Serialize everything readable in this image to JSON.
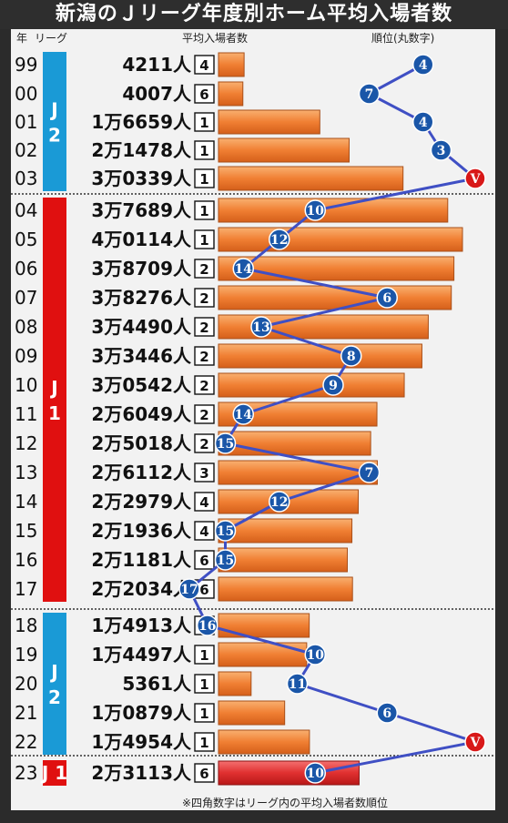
{
  "title": "新潟のＪリーグ年度別ホーム平均入場者数",
  "headers": {
    "year": "年",
    "league": "リーグ",
    "attendance": "平均入場者数",
    "rank": "順位(丸数字)"
  },
  "footnote": "※四角数字はリーグ内の平均入場者数順位",
  "league_labels": [
    {
      "label": "J 2",
      "color": "#1a9ad6"
    },
    {
      "label": "J 1",
      "color": "#e01010"
    },
    {
      "label": "J 2",
      "color": "#1a9ad6"
    },
    {
      "label": "J 1",
      "color": "#e01010"
    }
  ],
  "colors": {
    "bar": "#f07f33",
    "bar_latest": "#e03030",
    "rank_marker": "#1a56a8",
    "champion_marker": "#d81818",
    "line": "#3f4fc4"
  },
  "chart_data": {
    "type": "bar",
    "title": "新潟のＪリーグ年度別ホーム平均入場者数",
    "xlabel": "年",
    "ylabel": "平均入場者数",
    "categories": [
      "99",
      "00",
      "01",
      "02",
      "03",
      "04",
      "05",
      "06",
      "07",
      "08",
      "09",
      "10",
      "11",
      "12",
      "13",
      "14",
      "15",
      "16",
      "17",
      "18",
      "19",
      "20",
      "21",
      "22",
      "23"
    ],
    "leagues": [
      "J2",
      "J2",
      "J2",
      "J2",
      "J2",
      "J1",
      "J1",
      "J1",
      "J1",
      "J1",
      "J1",
      "J1",
      "J1",
      "J1",
      "J1",
      "J1",
      "J1",
      "J1",
      "J1",
      "J2",
      "J2",
      "J2",
      "J2",
      "J2",
      "J1"
    ],
    "attendance_labels": [
      "4211人",
      "4007人",
      "1万6659人",
      "2万1478人",
      "3万0339人",
      "3万7689人",
      "4万0114人",
      "3万8709人",
      "3万8276人",
      "3万4490人",
      "3万3446人",
      "3万0542人",
      "2万6049人",
      "2万5018人",
      "2万6112人",
      "2万2979人",
      "2万1936人",
      "2万1181人",
      "2万2034人",
      "1万4913人",
      "1万4497人",
      "5361人",
      "1万0879人",
      "1万4954人",
      "2万3113人"
    ],
    "values": [
      4211,
      4007,
      16659,
      21478,
      30339,
      37689,
      40114,
      38709,
      38276,
      34490,
      33446,
      30542,
      26049,
      25018,
      26112,
      22979,
      21936,
      21181,
      22034,
      14913,
      14497,
      5361,
      10879,
      14954,
      23113
    ],
    "attendance_rank_in_league": [
      4,
      6,
      1,
      1,
      1,
      1,
      1,
      2,
      2,
      2,
      2,
      2,
      2,
      2,
      3,
      4,
      4,
      6,
      6,
      1,
      1,
      1,
      1,
      1,
      6
    ],
    "series": [
      {
        "name": "順位",
        "values": [
          "4",
          "7",
          "4",
          "3",
          "V",
          "10",
          "12",
          "14",
          "6",
          "13",
          "8",
          "9",
          "14",
          "15",
          "7",
          "12",
          "15",
          "15",
          "17",
          "16",
          "10",
          "11",
          "6",
          "V",
          "10"
        ]
      }
    ]
  }
}
